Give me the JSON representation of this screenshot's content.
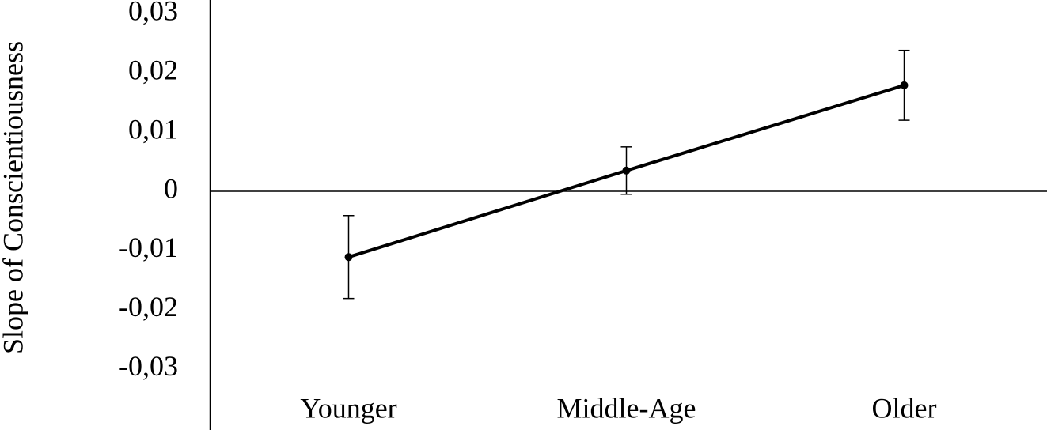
{
  "chart_data": {
    "type": "line",
    "y_label": "Slope of Conscientiousness",
    "categories": [
      "Younger",
      "Middle-Age",
      "Older"
    ],
    "values": [
      -0.0111,
      0.0035,
      0.0179
    ],
    "errors": [
      0.007,
      0.004,
      0.0059
    ],
    "color": "#000000",
    "ylim": [
      -0.0403,
      0.0323
    ],
    "yticks": [
      {
        "value": -0.03,
        "label": "-0,03"
      },
      {
        "value": -0.02,
        "label": "-0,02"
      },
      {
        "value": -0.01,
        "label": "-0,01"
      },
      0,
      {
        "value": 0.01,
        "label": "0,01"
      },
      {
        "value": 0.02,
        "label": "0,02"
      },
      {
        "value": 0.03,
        "label": "0,03"
      }
    ],
    "grid": false
  }
}
